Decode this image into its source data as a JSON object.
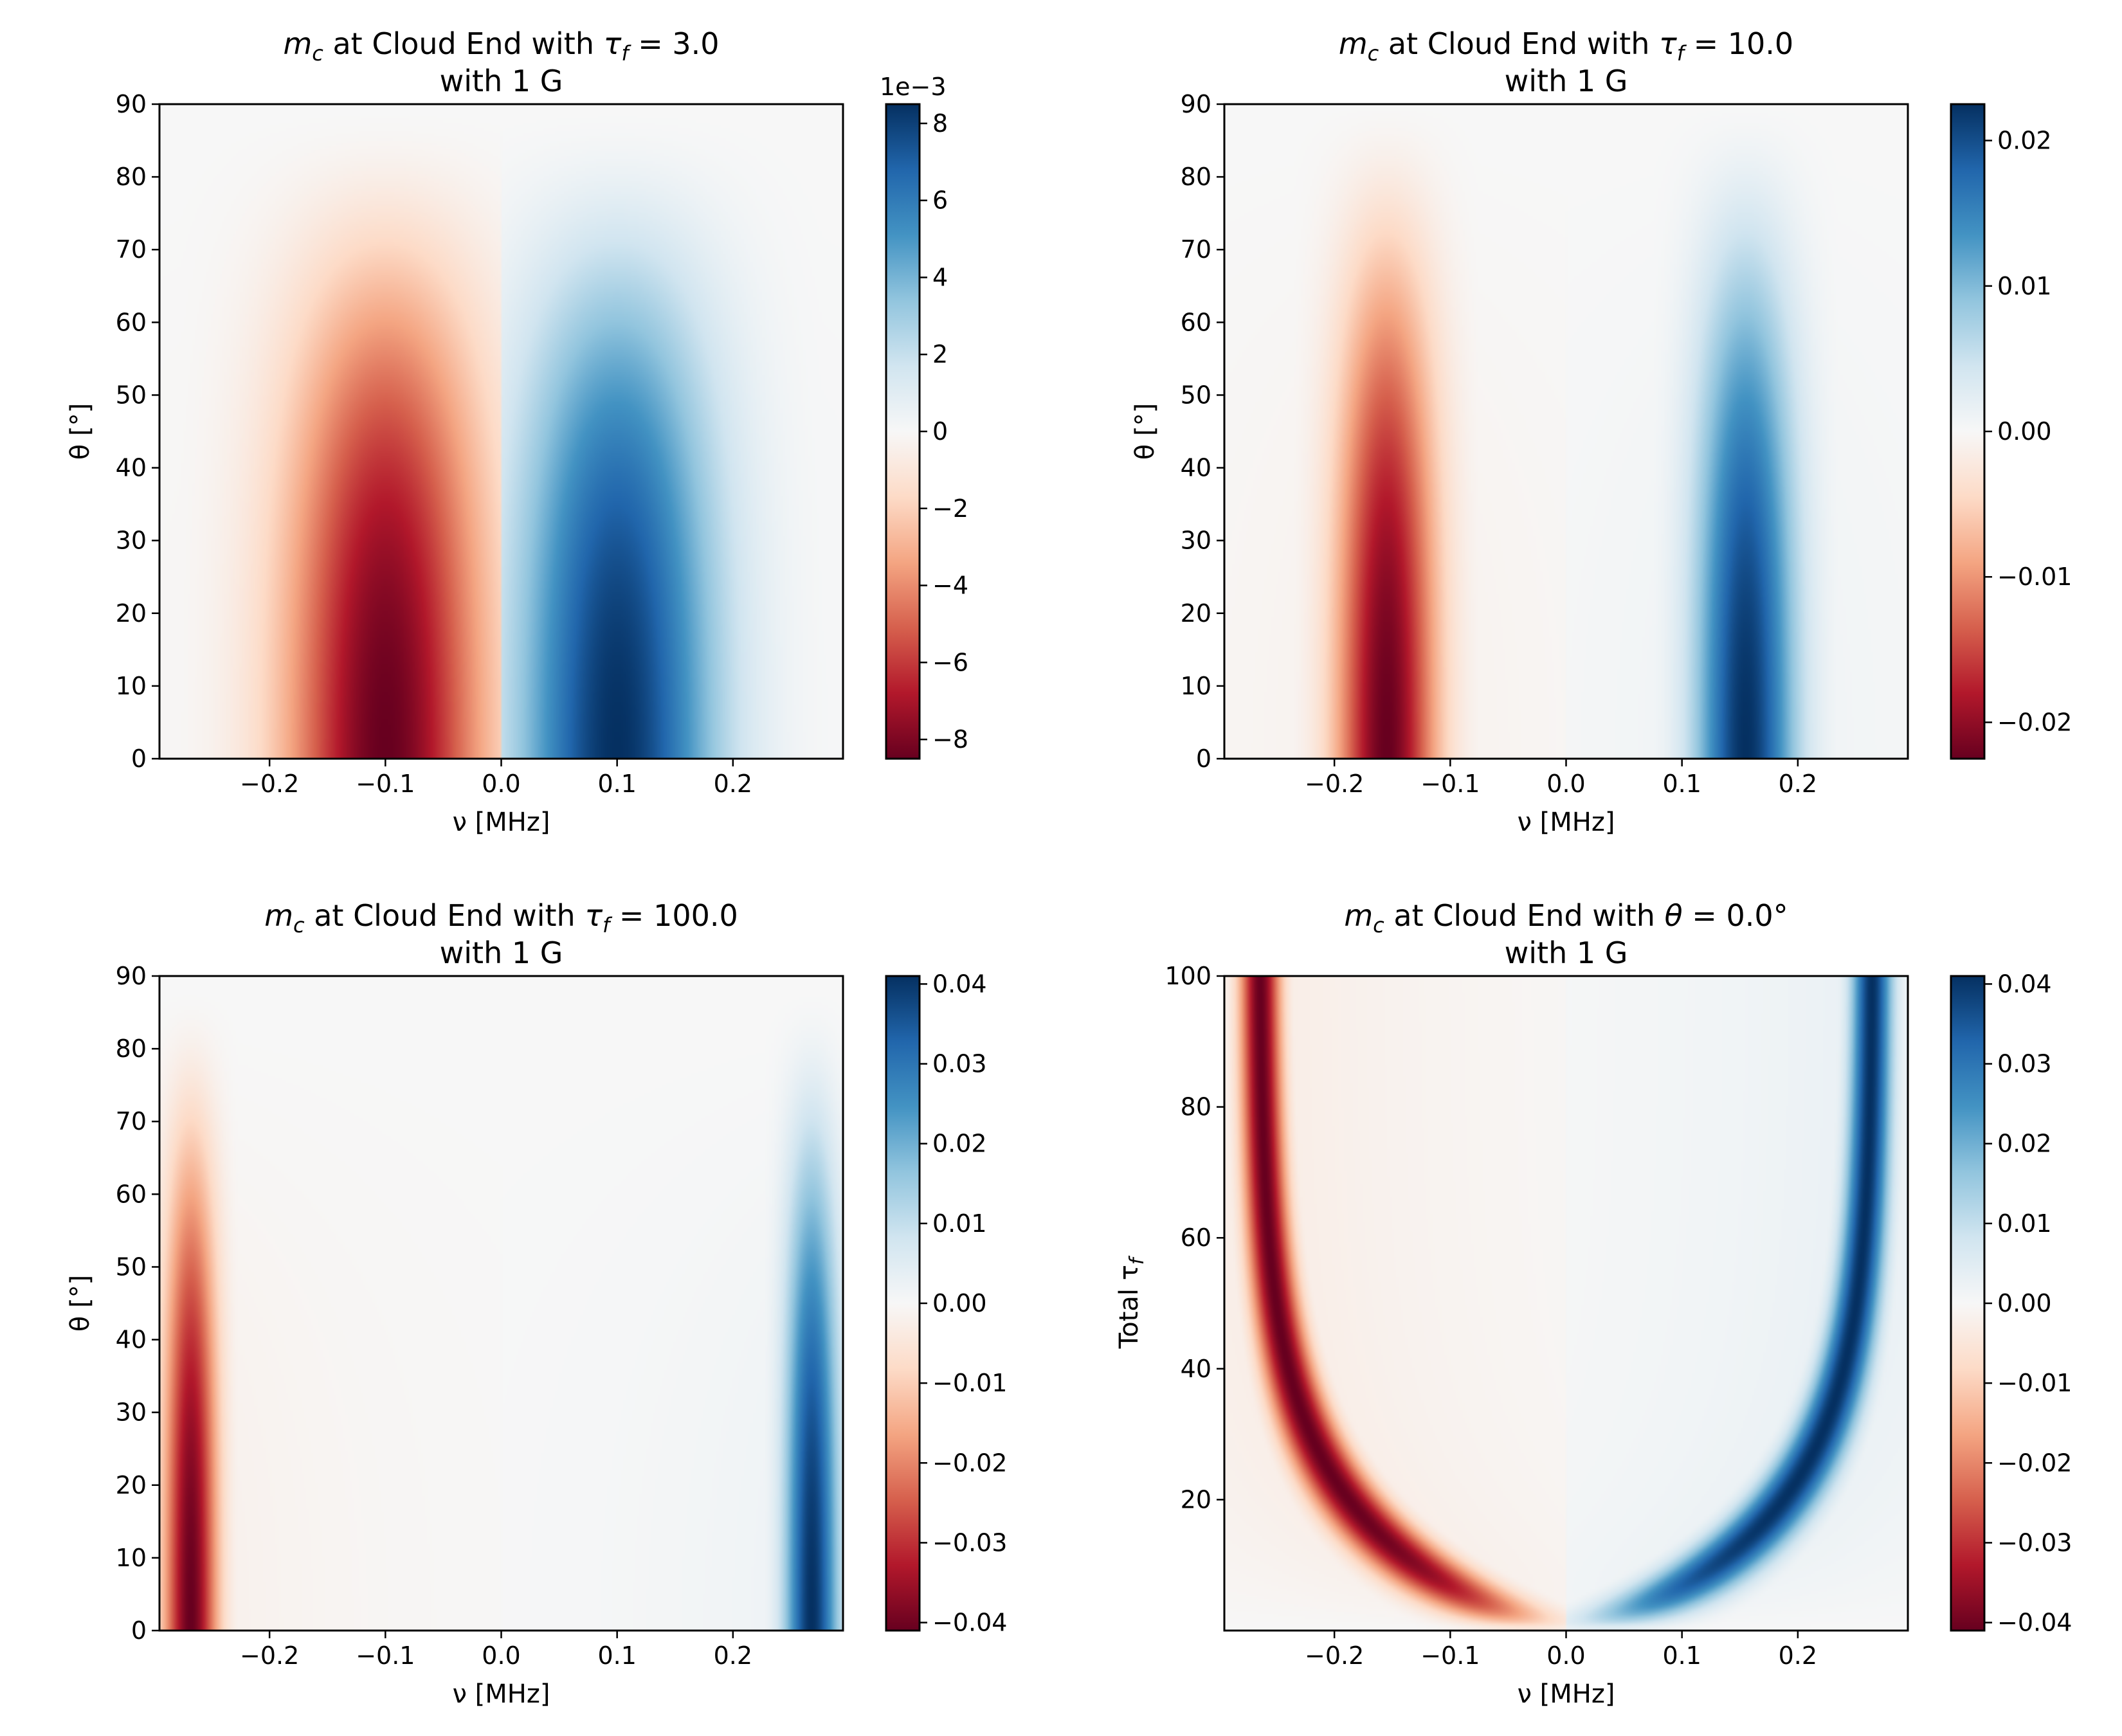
{
  "colormap": {
    "name": "RdBu",
    "stops": [
      "#67001f",
      "#b2182b",
      "#d6604d",
      "#f4a582",
      "#fddbc7",
      "#f7f7f7",
      "#d1e5f0",
      "#92c5de",
      "#4393c3",
      "#2166ac",
      "#053061"
    ]
  },
  "chart_data": [
    {
      "type": "heatmap",
      "title_prefix": "m",
      "title_subscript": "c",
      "title_mid": " at Cloud End with ",
      "title_symbol": "τ",
      "title_symbol_subscript": "f",
      "title_value": " = 3.0",
      "title_line2": "with 1 G",
      "xlabel": "ν [MHz]",
      "ylabel": "θ [°]",
      "xlim": [
        -0.295,
        0.295
      ],
      "ylim": [
        0,
        90
      ],
      "xticks": [
        -0.2,
        -0.1,
        0.0,
        0.1,
        0.2
      ],
      "xtick_labels": [
        "−0.2",
        "−0.1",
        "0.0",
        "0.1",
        "0.2"
      ],
      "yticks": [
        0,
        10,
        20,
        30,
        40,
        50,
        60,
        70,
        80,
        90
      ],
      "ytick_labels": [
        "0",
        "10",
        "20",
        "30",
        "40",
        "50",
        "60",
        "70",
        "80",
        "90"
      ],
      "colorbar": {
        "range": [
          -0.0085,
          0.0085
        ],
        "ticks": [
          -0.008,
          -0.006,
          -0.004,
          -0.002,
          0,
          0.002,
          0.004,
          0.006,
          0.008
        ],
        "tick_labels": [
          "−8",
          "−6",
          "−4",
          "−2",
          "0",
          "2",
          "4",
          "6",
          "8"
        ],
        "offset_text": "1e−3"
      },
      "feature": {
        "kind": "theta",
        "peak_nu": 0.1,
        "width": 0.06,
        "max_value": 0.0085,
        "theta_extent": 90
      }
    },
    {
      "type": "heatmap",
      "title_prefix": "m",
      "title_subscript": "c",
      "title_mid": " at Cloud End with ",
      "title_symbol": "τ",
      "title_symbol_subscript": "f",
      "title_value": " = 10.0",
      "title_line2": "with 1 G",
      "xlabel": "ν [MHz]",
      "ylabel": "θ [°]",
      "xlim": [
        -0.295,
        0.295
      ],
      "ylim": [
        0,
        90
      ],
      "xticks": [
        -0.2,
        -0.1,
        0.0,
        0.1,
        0.2
      ],
      "xtick_labels": [
        "−0.2",
        "−0.1",
        "0.0",
        "0.1",
        "0.2"
      ],
      "yticks": [
        0,
        10,
        20,
        30,
        40,
        50,
        60,
        70,
        80,
        90
      ],
      "ytick_labels": [
        "0",
        "10",
        "20",
        "30",
        "40",
        "50",
        "60",
        "70",
        "80",
        "90"
      ],
      "colorbar": {
        "range": [
          -0.0225,
          0.0225
        ],
        "ticks": [
          -0.02,
          -0.01,
          0.0,
          0.01,
          0.02
        ],
        "tick_labels": [
          "−0.02",
          "−0.01",
          "0.00",
          "0.01",
          "0.02"
        ],
        "offset_text": ""
      },
      "feature": {
        "kind": "theta",
        "peak_nu": 0.155,
        "width": 0.03,
        "max_value": 0.0225,
        "theta_extent": 95
      }
    },
    {
      "type": "heatmap",
      "title_prefix": "m",
      "title_subscript": "c",
      "title_mid": " at Cloud End with ",
      "title_symbol": "τ",
      "title_symbol_subscript": "f",
      "title_value": " = 100.0",
      "title_line2": "with 1 G",
      "xlabel": "ν [MHz]",
      "ylabel": "θ [°]",
      "xlim": [
        -0.295,
        0.295
      ],
      "ylim": [
        0,
        90
      ],
      "xticks": [
        -0.2,
        -0.1,
        0.0,
        0.1,
        0.2
      ],
      "xtick_labels": [
        "−0.2",
        "−0.1",
        "0.0",
        "0.1",
        "0.2"
      ],
      "yticks": [
        0,
        10,
        20,
        30,
        40,
        50,
        60,
        70,
        80,
        90
      ],
      "ytick_labels": [
        "0",
        "10",
        "20",
        "30",
        "40",
        "50",
        "60",
        "70",
        "80",
        "90"
      ],
      "colorbar": {
        "range": [
          -0.041,
          0.041
        ],
        "ticks": [
          -0.04,
          -0.03,
          -0.02,
          -0.01,
          0.0,
          0.01,
          0.02,
          0.03,
          0.04
        ],
        "tick_labels": [
          "−0.04",
          "−0.03",
          "−0.02",
          "−0.01",
          "0.00",
          "0.01",
          "0.02",
          "0.03",
          "0.04"
        ],
        "offset_text": ""
      },
      "feature": {
        "kind": "theta",
        "peak_nu": 0.268,
        "width": 0.016,
        "max_value": 0.041,
        "theta_extent": 88
      }
    },
    {
      "type": "heatmap",
      "title_prefix": "m",
      "title_subscript": "c",
      "title_mid": " at Cloud End with ",
      "title_symbol": "θ",
      "title_symbol_subscript": "",
      "title_value": " = 0.0°",
      "title_line2": "with 1 G",
      "xlabel": "ν [MHz]",
      "ylabel": "Total τ",
      "ylabel_subscript": "f",
      "xlim": [
        -0.295,
        0.295
      ],
      "ylim": [
        0,
        100
      ],
      "xticks": [
        -0.2,
        -0.1,
        0.0,
        0.1,
        0.2
      ],
      "xtick_labels": [
        "−0.2",
        "−0.1",
        "0.0",
        "0.1",
        "0.2"
      ],
      "yticks": [
        20,
        40,
        60,
        80,
        100
      ],
      "ytick_labels": [
        "20",
        "40",
        "60",
        "80",
        "100"
      ],
      "colorbar": {
        "range": [
          -0.041,
          0.041
        ],
        "ticks": [
          -0.04,
          -0.03,
          -0.02,
          -0.01,
          0.0,
          0.01,
          0.02,
          0.03,
          0.04
        ],
        "tick_labels": [
          "−0.04",
          "−0.03",
          "−0.02",
          "−0.01",
          "0.00",
          "0.01",
          "0.02",
          "0.03",
          "0.04"
        ],
        "offset_text": ""
      },
      "feature": {
        "kind": "tau",
        "max_value": 0.041
      }
    }
  ]
}
